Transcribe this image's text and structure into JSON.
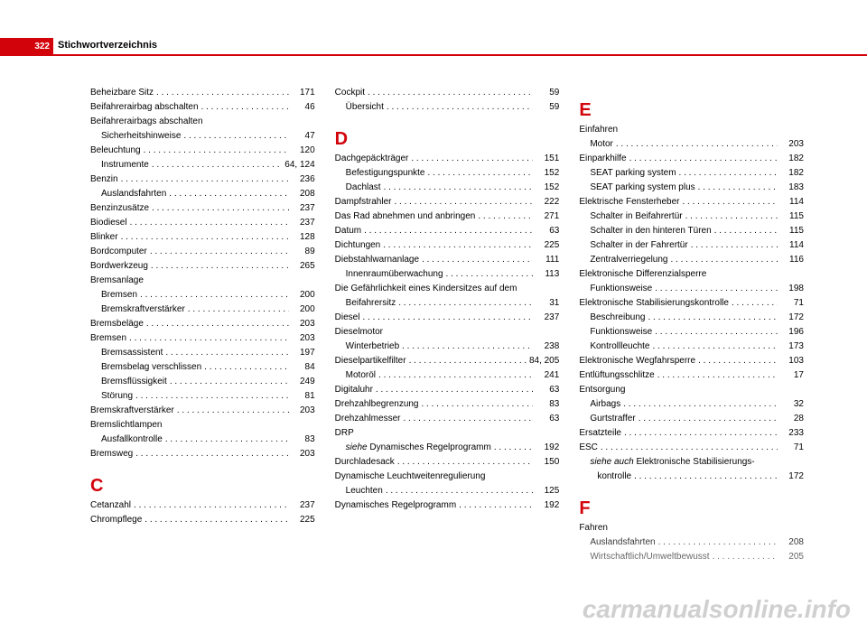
{
  "header": {
    "page_number": "322",
    "title": "Stichwortverzeichnis"
  },
  "watermark": "carmanualsonline.info",
  "colors": {
    "accent": "#d3030c",
    "text": "#000000",
    "bg": "#ffffff",
    "watermark": "#d0d0d0"
  },
  "entries": [
    {
      "label": "Beheizbare Sitz",
      "page": "171"
    },
    {
      "label": "Beifahrerairbag abschalten",
      "page": "46"
    },
    {
      "label": "Beifahrerairbags abschalten"
    },
    {
      "label": "Sicherheitshinweise",
      "page": "47",
      "sub": true
    },
    {
      "label": "Beleuchtung",
      "page": "120"
    },
    {
      "label": "Instrumente",
      "page": "64, 124",
      "sub": true
    },
    {
      "label": "Benzin",
      "page": "236"
    },
    {
      "label": "Auslandsfahrten",
      "page": "208",
      "sub": true
    },
    {
      "label": "Benzinzusätze",
      "page": "237"
    },
    {
      "label": "Biodiesel",
      "page": "237"
    },
    {
      "label": "Blinker",
      "page": "128"
    },
    {
      "label": "Bordcomputer",
      "page": "89"
    },
    {
      "label": "Bordwerkzeug",
      "page": "265"
    },
    {
      "label": "Bremsanlage"
    },
    {
      "label": "Bremsen",
      "page": "200",
      "sub": true
    },
    {
      "label": "Bremskraftverstärker",
      "page": "200",
      "sub": true
    },
    {
      "label": "Bremsbeläge",
      "page": "203"
    },
    {
      "label": "Bremsen",
      "page": "203"
    },
    {
      "label": "Bremsassistent",
      "page": "197",
      "sub": true
    },
    {
      "label": "Bremsbelag verschlissen",
      "page": "84",
      "sub": true
    },
    {
      "label": "Bremsflüssigkeit",
      "page": "249",
      "sub": true
    },
    {
      "label": "Störung",
      "page": "81",
      "sub": true
    },
    {
      "label": "Bremskraftverstärker",
      "page": "203"
    },
    {
      "label": "Bremslichtlampen"
    },
    {
      "label": "Ausfallkontrolle",
      "page": "83",
      "sub": true
    },
    {
      "label": "Bremsweg",
      "page": "203"
    },
    {
      "letter": "C"
    },
    {
      "label": "Cetanzahl",
      "page": "237"
    },
    {
      "label": "Chrompflege",
      "page": "225"
    },
    {
      "colbreak": true
    },
    {
      "label": "Cockpit",
      "page": "59"
    },
    {
      "label": "Übersicht",
      "page": "59",
      "sub": true
    },
    {
      "letter": "D"
    },
    {
      "label": "Dachgepäckträger",
      "page": "151"
    },
    {
      "label": "Befestigungspunkte",
      "page": "152",
      "sub": true
    },
    {
      "label": "Dachlast",
      "page": "152",
      "sub": true
    },
    {
      "label": "Dampfstrahler",
      "page": "222"
    },
    {
      "label": "Das Rad abnehmen und anbringen",
      "page": "271"
    },
    {
      "label": "Datum",
      "page": "63"
    },
    {
      "label": "Dichtungen",
      "page": "225"
    },
    {
      "label": "Diebstahlwarnanlage",
      "page": "111"
    },
    {
      "label": "Innenraumüberwachung",
      "page": "113",
      "sub": true
    },
    {
      "label": "Die Gefährlichkeit eines Kindersitzes auf dem"
    },
    {
      "label": "Beifahrersitz",
      "page": "31",
      "sub": true,
      "continuation": true
    },
    {
      "label": "Diesel",
      "page": "237"
    },
    {
      "label": "Dieselmotor"
    },
    {
      "label": "Winterbetrieb",
      "page": "238",
      "sub": true
    },
    {
      "label": "Dieselpartikelfilter",
      "page": "84, 205"
    },
    {
      "label": "Motoröl",
      "page": "241",
      "sub": true
    },
    {
      "label": "Digitaluhr",
      "page": "63"
    },
    {
      "label": "Drehzahlbegrenzung",
      "page": "83"
    },
    {
      "label": "Drehzahlmesser",
      "page": "63"
    },
    {
      "label": "DRP"
    },
    {
      "label": "siehe Dynamisches Regelprogramm",
      "page": "192",
      "sub": true,
      "italic_prefix": "siehe"
    },
    {
      "label": "Durchladesack",
      "page": "150"
    },
    {
      "label": "Dynamische Leuchtweitenregulierung"
    },
    {
      "label": "Leuchten",
      "page": "125",
      "sub": true
    },
    {
      "label": "Dynamisches Regelprogramm",
      "page": "192"
    },
    {
      "colbreak": true
    },
    {
      "letter": "E"
    },
    {
      "label": "Einfahren"
    },
    {
      "label": "Motor",
      "page": "203",
      "sub": true
    },
    {
      "label": "Einparkhilfe",
      "page": "182"
    },
    {
      "label": "SEAT parking system",
      "page": "182",
      "sub": true
    },
    {
      "label": "SEAT parking system plus",
      "page": "183",
      "sub": true
    },
    {
      "label": "Elektrische Fensterheber",
      "page": "114"
    },
    {
      "label": "Schalter in Beifahrertür",
      "page": "115",
      "sub": true
    },
    {
      "label": "Schalter in den hinteren Türen",
      "page": "115",
      "sub": true
    },
    {
      "label": "Schalter in der Fahrertür",
      "page": "114",
      "sub": true
    },
    {
      "label": "Zentralverriegelung",
      "page": "116",
      "sub": true
    },
    {
      "label": "Elektronische Differenzialsperre"
    },
    {
      "label": "Funktionsweise",
      "page": "198",
      "sub": true
    },
    {
      "label": "Elektronische Stabilisierungskontrolle",
      "page": "71"
    },
    {
      "label": "Beschreibung",
      "page": "172",
      "sub": true
    },
    {
      "label": "Funktionsweise",
      "page": "196",
      "sub": true
    },
    {
      "label": "Kontrollleuchte",
      "page": "173",
      "sub": true
    },
    {
      "label": "Elektronische Wegfahrsperre",
      "page": "103"
    },
    {
      "label": "Entlüftungsschlitze",
      "page": "17"
    },
    {
      "label": "Entsorgung"
    },
    {
      "label": "Airbags",
      "page": "32",
      "sub": true
    },
    {
      "label": "Gurtstraffer",
      "page": "28",
      "sub": true
    },
    {
      "label": "Ersatzteile",
      "page": "233"
    },
    {
      "label": "ESC",
      "page": "71"
    },
    {
      "label": "siehe auch Elektronische Stabilisierungs-",
      "sub": true,
      "italic_prefix": "siehe auch"
    },
    {
      "label": "kontrolle",
      "page": "172",
      "sub": true,
      "continuation": true,
      "extra_indent": true
    },
    {
      "letter": "F"
    },
    {
      "label": "Fahren"
    },
    {
      "label": "Auslandsfahrten",
      "page": "208",
      "sub": true
    },
    {
      "label": "Wirtschaftlich/Umweltbewusst",
      "page": "205",
      "sub": true
    }
  ]
}
